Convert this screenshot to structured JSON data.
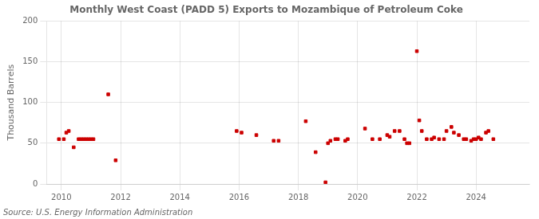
{
  "chart_data": {
    "type": "scatter",
    "title": "Monthly West Coast (PADD 5) Exports to Mozambique of Petroleum Coke",
    "ylabel": "Thousand Barrels",
    "annotations": [
      "Source: U.S. Energy Information Administration"
    ],
    "color": "#cc0000",
    "marker": "square",
    "x": [
      2009.917,
      2010.083,
      2010.167,
      2010.25,
      2010.417,
      2010.583,
      2010.667,
      2010.75,
      2010.833,
      2010.917,
      2011.0,
      2011.083,
      2011.583,
      2011.833,
      2015.917,
      2016.083,
      2016.583,
      2017.167,
      2017.333,
      2018.25,
      2018.583,
      2018.917,
      2019.0,
      2019.083,
      2019.25,
      2019.333,
      2019.583,
      2019.667,
      2020.25,
      2020.5,
      2020.75,
      2021.0,
      2021.083,
      2021.25,
      2021.417,
      2021.583,
      2021.667,
      2021.75,
      2022.0,
      2022.083,
      2022.167,
      2022.333,
      2022.5,
      2022.583,
      2022.75,
      2022.917,
      2023.0,
      2023.167,
      2023.25,
      2023.417,
      2023.583,
      2023.667,
      2023.833,
      2023.917,
      2024.0,
      2024.083,
      2024.167,
      2024.333,
      2024.417,
      2024.583
    ],
    "values": [
      55,
      55,
      63,
      65,
      45,
      55,
      55,
      55,
      55,
      55,
      55,
      55,
      110,
      29,
      65,
      63,
      60,
      53,
      53,
      77,
      39,
      2,
      50,
      53,
      55,
      55,
      53,
      55,
      68,
      55,
      55,
      60,
      58,
      65,
      65,
      55,
      50,
      50,
      163,
      78,
      65,
      55,
      55,
      57,
      55,
      55,
      65,
      70,
      63,
      60,
      55,
      55,
      53,
      55,
      55,
      57,
      55,
      63,
      65,
      55
    ],
    "xlim": [
      2009.5,
      2025.8
    ],
    "xticks": [
      2010,
      2012,
      2014,
      2016,
      2018,
      2020,
      2022,
      2024
    ],
    "ylim": [
      0,
      200
    ],
    "yticks": [
      0,
      50,
      100,
      150,
      200
    ],
    "grid": true
  }
}
